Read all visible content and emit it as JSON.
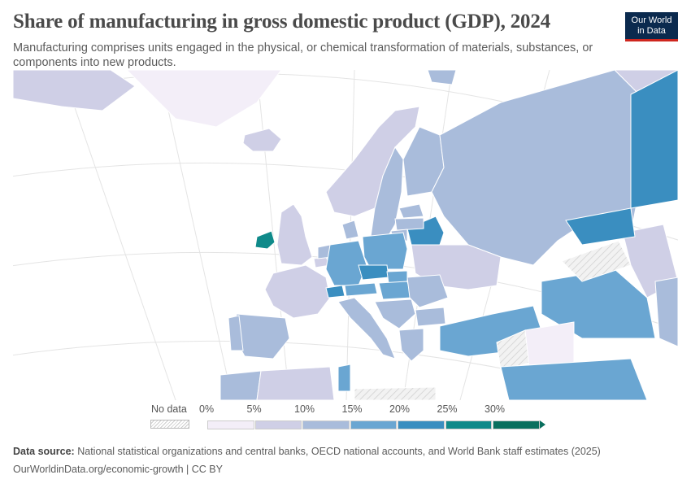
{
  "header": {
    "title": "Share of manufacturing in gross domestic product (GDP), 2024",
    "subtitle": "Manufacturing comprises units engaged in the physical, or chemical transformation of materials, substances, or components into new products."
  },
  "logo": {
    "line1": "Our World",
    "line2": "in Data"
  },
  "legend": {
    "nodata_label": "No data",
    "bins": [
      {
        "label": "0%",
        "color": "#f3eef8"
      },
      {
        "label": "5%",
        "color": "#cfcfe6"
      },
      {
        "label": "10%",
        "color": "#a9bcdb"
      },
      {
        "label": "15%",
        "color": "#6aa6d2"
      },
      {
        "label": "20%",
        "color": "#3a8ec0"
      },
      {
        "label": "25%",
        "color": "#0f8a8a"
      },
      {
        "label": "30%",
        "color": "#0a6f5e"
      }
    ]
  },
  "map_colors": {
    "ocean": "#ffffff",
    "land_background": "#f7f7f7",
    "no_data": "#e6e6e6",
    "border": "#ffffff",
    "graticule": "#e4e4e4"
  },
  "footer": {
    "source_label": "Data source:",
    "source_text": "National statistical organizations and central banks, OECD national accounts, and World Bank staff estimates (2025)",
    "url": "OurWorldinData.org/economic-growth | CC BY"
  }
}
